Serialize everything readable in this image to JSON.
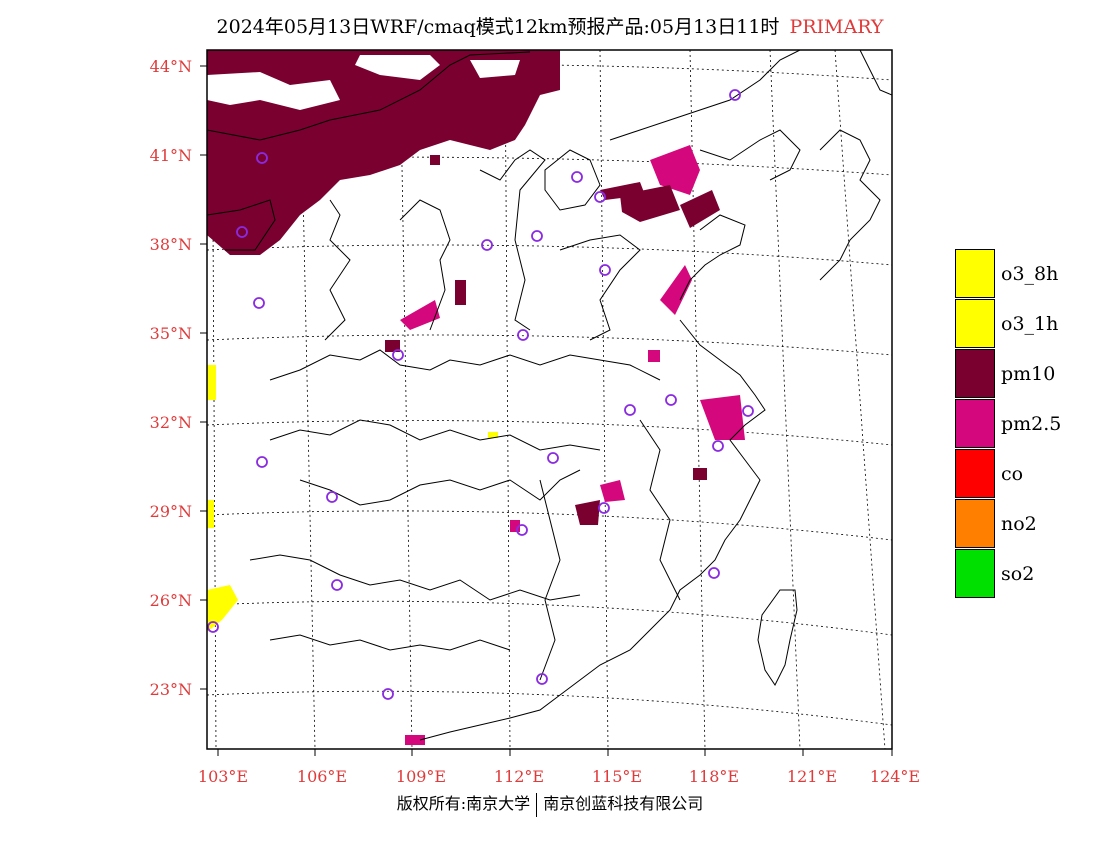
{
  "title": {
    "main": "2024年05月13日WRF/cmaq模式12km预报产品:05月13日11时",
    "accent": "PRIMARY",
    "accent_color": "#e03a3a"
  },
  "map": {
    "lat_labels": [
      "44°N",
      "41°N",
      "38°N",
      "35°N",
      "32°N",
      "29°N",
      "26°N",
      "23°N"
    ],
    "lon_labels": [
      "103°E",
      "106°E",
      "109°E",
      "112°E",
      "115°E",
      "118°E",
      "121°E",
      "124°E"
    ],
    "label_color": "#e03a3a",
    "colors": {
      "pm10": "#7a0030",
      "pm25": "#d4087c",
      "o3": "#ffff00",
      "site": "#8a2be2"
    }
  },
  "legend": {
    "items": [
      {
        "label": "o3_8h",
        "color": "#ffff00"
      },
      {
        "label": "o3_1h",
        "color": "#ffff00"
      },
      {
        "label": "pm10",
        "color": "#7a0030"
      },
      {
        "label": "pm2.5",
        "color": "#d4087c"
      },
      {
        "label": "co",
        "color": "#ff0000"
      },
      {
        "label": "no2",
        "color": "#ff7f00"
      },
      {
        "label": "so2",
        "color": "#00e000"
      }
    ]
  },
  "copyright": {
    "left": "版权所有:南京大学",
    "right": "南京创蓝科技有限公司"
  }
}
